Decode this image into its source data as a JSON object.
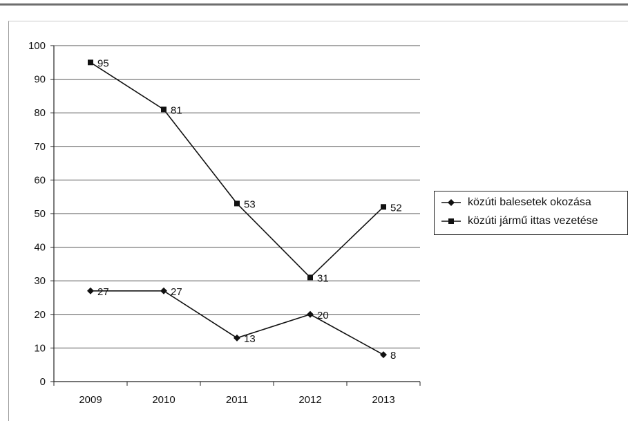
{
  "chart_data": {
    "type": "line",
    "categories": [
      "2009",
      "2010",
      "2011",
      "2012",
      "2013"
    ],
    "ylim": [
      0,
      100
    ],
    "yticks": [
      0,
      10,
      20,
      30,
      40,
      50,
      60,
      70,
      80,
      90,
      100
    ],
    "grid": true,
    "legend_position": "right",
    "series": [
      {
        "name": "közúti balesetek okozása",
        "marker": "diamond",
        "values": [
          27,
          27,
          13,
          20,
          8
        ]
      },
      {
        "name": "közúti jármű ittas vezetése",
        "marker": "square",
        "values": [
          95,
          81,
          53,
          31,
          52
        ]
      }
    ]
  },
  "colors": {
    "line": "#111111",
    "grid": "#555555",
    "axis": "#222222"
  }
}
